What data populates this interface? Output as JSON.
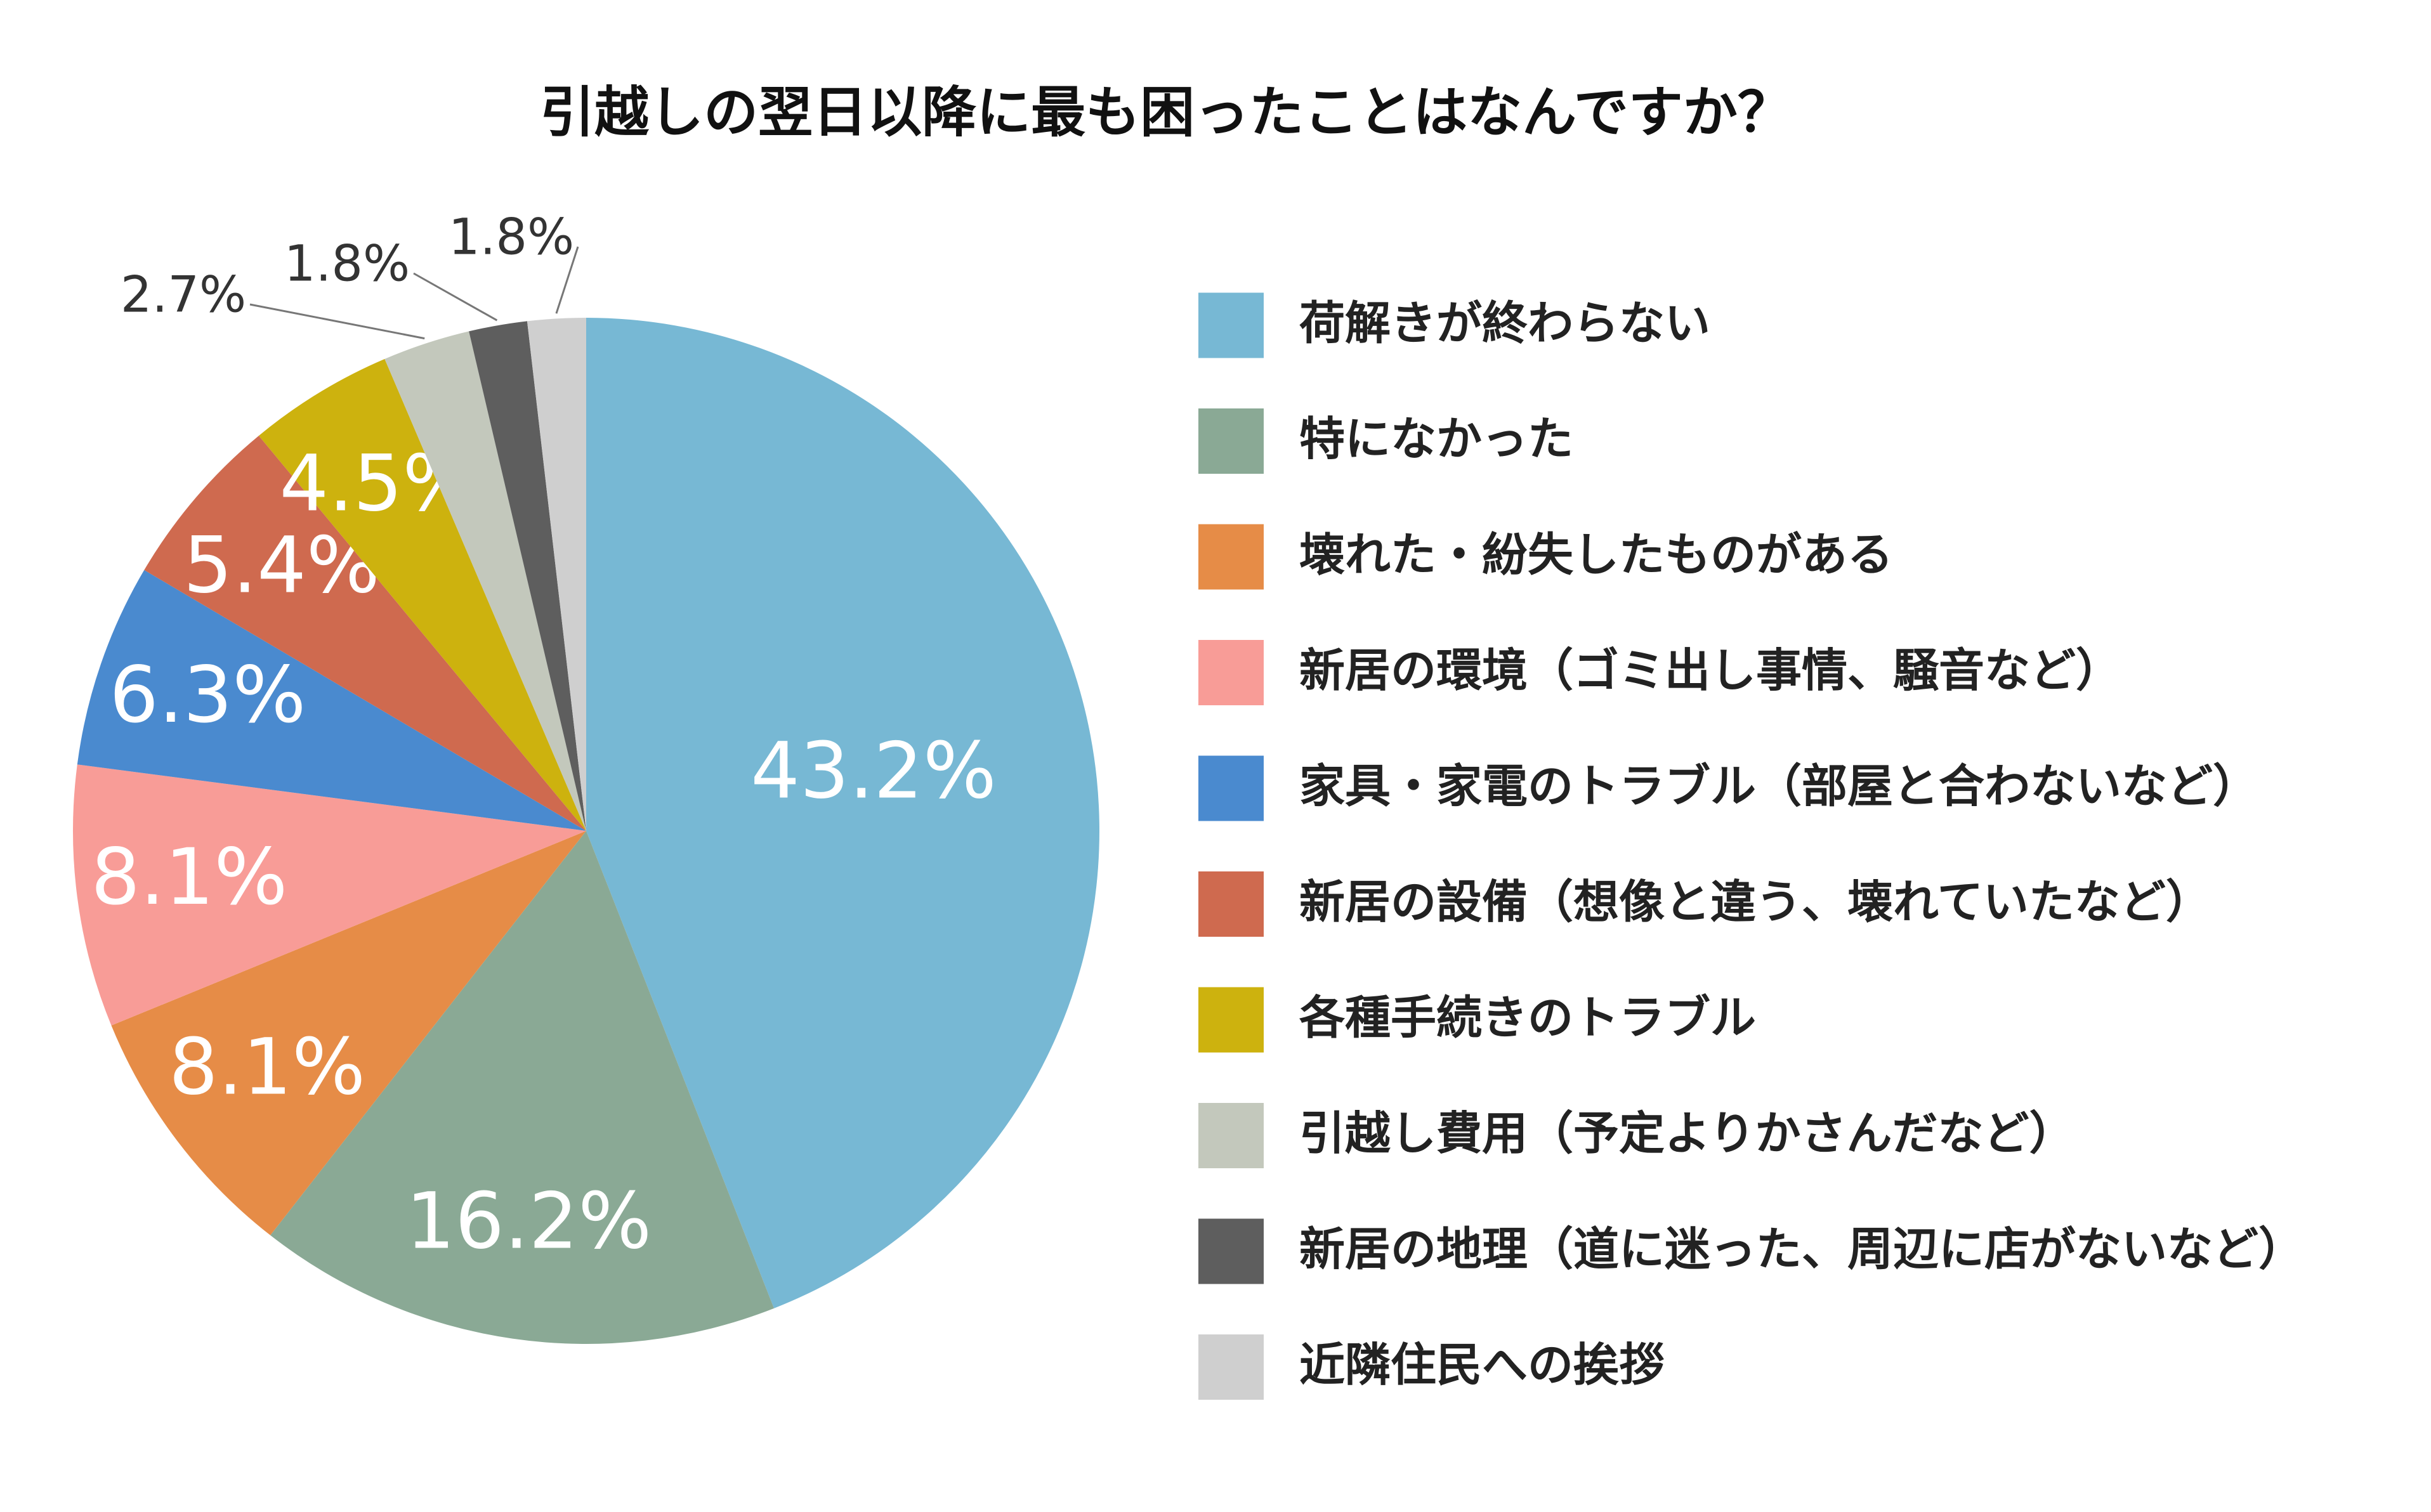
{
  "chart_data": {
    "type": "pie",
    "title": "引越しの翌日以降に最も困ったことはなんですか？",
    "categories": [
      "荷解きが終わらない",
      "特になかった",
      "壊れた・紛失したものがある",
      "新居の環境（ゴミ出し事情、騒音など）",
      "家具・家電のトラブル（部屋と合わないなど）",
      "新居の設備（想像と違う、壊れていたなど）",
      "各種手続きのトラブル",
      "引越し費用（予定よりかさんだなど）",
      "新居の地理（道に迷った、周辺に店がないなど）",
      "近隣住民への挨拶"
    ],
    "values": [
      43.2,
      16.2,
      8.1,
      8.1,
      6.3,
      5.4,
      4.5,
      2.7,
      1.8,
      1.8
    ],
    "value_labels": [
      "43.2%",
      "16.2%",
      "8.1%",
      "8.1%",
      "6.3%",
      "5.4%",
      "4.5%",
      "2.7%",
      "1.8%",
      "1.8%"
    ],
    "colors": [
      "#77b8d4",
      "#8aa995",
      "#e68c47",
      "#f89c97",
      "#4a8acf",
      "#cf6a4f",
      "#cdb20e",
      "#c3c8bc",
      "#5e5e5e",
      "#cfcfcf"
    ],
    "legend": "right"
  }
}
